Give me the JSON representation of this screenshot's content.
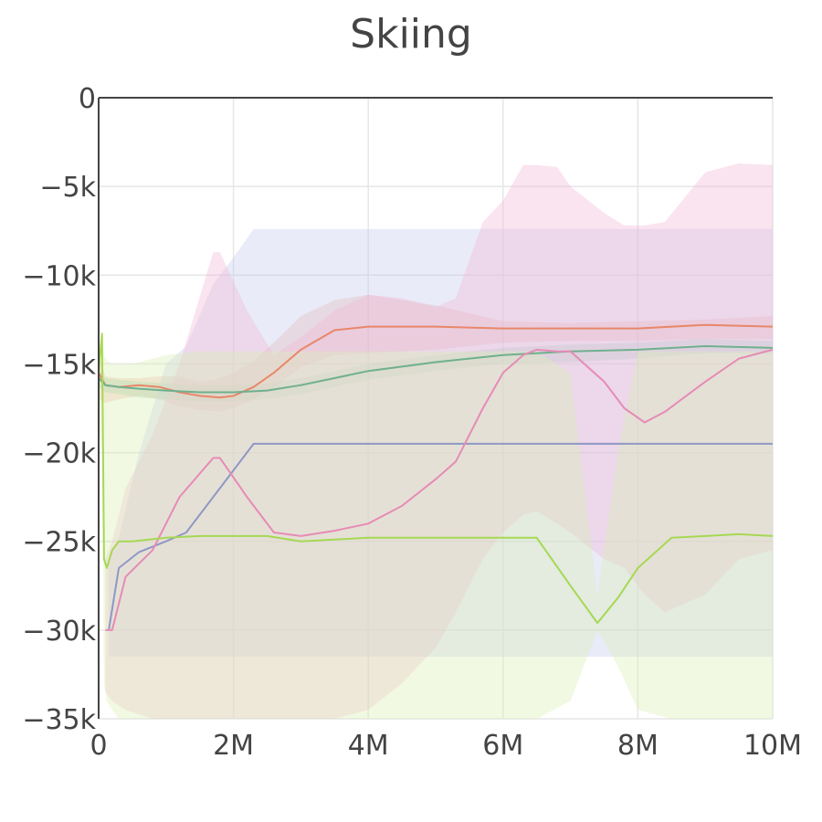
{
  "chart_data": {
    "type": "line",
    "title": "Skiing",
    "xlabel": "",
    "ylabel": "",
    "xlim": [
      0,
      10000000
    ],
    "ylim": [
      -35000,
      0
    ],
    "grid": true,
    "x_ticks": [
      {
        "value": 0,
        "label": "0"
      },
      {
        "value": 2000000,
        "label": "2M"
      },
      {
        "value": 4000000,
        "label": "4M"
      },
      {
        "value": 6000000,
        "label": "6M"
      },
      {
        "value": 8000000,
        "label": "8M"
      },
      {
        "value": 10000000,
        "label": "10M"
      }
    ],
    "y_ticks": [
      {
        "value": 0,
        "label": "0"
      },
      {
        "value": -5000,
        "label": "−5k"
      },
      {
        "value": -10000,
        "label": "−10k"
      },
      {
        "value": -15000,
        "label": "−15k"
      },
      {
        "value": -20000,
        "label": "−20k"
      },
      {
        "value": -25000,
        "label": "−25k"
      },
      {
        "value": -30000,
        "label": "−30k"
      },
      {
        "value": -35000,
        "label": "−35k"
      }
    ],
    "series": [
      {
        "color": "#e8876a",
        "band_color": "#f4b6a0",
        "x": [
          0,
          100000,
          300000,
          600000,
          900000,
          1200000,
          1500000,
          1800000,
          2000000,
          2300000,
          2600000,
          3000000,
          3500000,
          4000000,
          5000000,
          6000000,
          7000000,
          8000000,
          9000000,
          10000000
        ],
        "y": [
          -15500,
          -16200,
          -16300,
          -16200,
          -16300,
          -16600,
          -16800,
          -16900,
          -16800,
          -16300,
          -15500,
          -14200,
          -13100,
          -12900,
          -12900,
          -13000,
          -13000,
          -13000,
          -12800,
          -12900
        ],
        "lower": [
          -17000,
          -17200,
          -17000,
          -16800,
          -17000,
          -17400,
          -17600,
          -17700,
          -17500,
          -17000,
          -16300,
          -15200,
          -14500,
          -14400,
          -14200,
          -13800,
          -13700,
          -13700,
          -13600,
          -13600
        ],
        "upper": [
          -14500,
          -15700,
          -15800,
          -15800,
          -15700,
          -15700,
          -16000,
          -15800,
          -15500,
          -14800,
          -13800,
          -12300,
          -11400,
          -11100,
          -11700,
          -12600,
          -12700,
          -12600,
          -12500,
          -12300
        ]
      },
      {
        "color": "#6fb08e",
        "band_color": "#9fd2b4",
        "x": [
          0,
          100000,
          300000,
          600000,
          1000000,
          1500000,
          2000000,
          2500000,
          3000000,
          3500000,
          4000000,
          5000000,
          6000000,
          7000000,
          8000000,
          9000000,
          10000000
        ],
        "y": [
          -15800,
          -16200,
          -16300,
          -16400,
          -16500,
          -16600,
          -16600,
          -16500,
          -16200,
          -15800,
          -15400,
          -14900,
          -14500,
          -14300,
          -14200,
          -14000,
          -14100
        ],
        "lower": [
          -16300,
          -16600,
          -16700,
          -16900,
          -17000,
          -17100,
          -17100,
          -17000,
          -16700,
          -16300,
          -15900,
          -15400,
          -15000,
          -14900,
          -14700,
          -14400,
          -14400
        ],
        "upper": [
          -15300,
          -15800,
          -15900,
          -16000,
          -16100,
          -16200,
          -16200,
          -16100,
          -15800,
          -15400,
          -15000,
          -14500,
          -14100,
          -13900,
          -13800,
          -13600,
          -13700
        ]
      },
      {
        "color": "#8f98c4",
        "band_color": "#c4cbec",
        "x": [
          150000,
          300000,
          600000,
          1000000,
          1300000,
          1700000,
          2000000,
          2300000,
          3000000,
          5000000,
          7000000,
          9000000,
          10000000
        ],
        "y": [
          -30000,
          -26500,
          -25600,
          -25000,
          -24500,
          -22500,
          -21000,
          -19500,
          -19500,
          -19500,
          -19500,
          -19500,
          -19500
        ],
        "lower": [
          -31500,
          -31500,
          -31500,
          -31500,
          -31500,
          -31500,
          -31500,
          -31500,
          -31500,
          -31500,
          -31500,
          -31500,
          -31500
        ],
        "upper": [
          -26000,
          -24800,
          -20000,
          -15000,
          -14000,
          -10500,
          -9000,
          -7400,
          -7400,
          -7400,
          -7400,
          -7400,
          -7400
        ]
      },
      {
        "color": "#e68bb6",
        "band_color": "#f2b9d6",
        "x": [
          100000,
          200000,
          400000,
          800000,
          1200000,
          1700000,
          1800000,
          2200000,
          2600000,
          3000000,
          3500000,
          4000000,
          4500000,
          5000000,
          5300000,
          5700000,
          6000000,
          6300000,
          6500000,
          6800000,
          7000000,
          7500000,
          7800000,
          8100000,
          8400000,
          9000000,
          9500000,
          10000000
        ],
        "y": [
          -30000,
          -30000,
          -27000,
          -25500,
          -22500,
          -20300,
          -20300,
          -22500,
          -24500,
          -24700,
          -24400,
          -24000,
          -23000,
          -21500,
          -20500,
          -17500,
          -15500,
          -14500,
          -14200,
          -14300,
          -14300,
          -16000,
          -17500,
          -18300,
          -17700,
          -16000,
          -14700,
          -14200
        ],
        "lower": [
          -33500,
          -34000,
          -34500,
          -35000,
          -35000,
          -35000,
          -35000,
          -35000,
          -35000,
          -35000,
          -35000,
          -34500,
          -33000,
          -31000,
          -29000,
          -26000,
          -24500,
          -23500,
          -23300,
          -24000,
          -24500,
          -26000,
          -26500,
          -28000,
          -29000,
          -28000,
          -26000,
          -25500
        ],
        "upper": [
          -26000,
          -25000,
          -22000,
          -19000,
          -15000,
          -8700,
          -8700,
          -12000,
          -14500,
          -13500,
          -12000,
          -11100,
          -11300,
          -11800,
          -11300,
          -7000,
          -5800,
          -3800,
          -3800,
          -3900,
          -5000,
          -6500,
          -7200,
          -7200,
          -7000,
          -4200,
          -3700,
          -3800
        ]
      },
      {
        "color": "#a6d854",
        "band_color": "#d9efb6",
        "x": [
          0,
          50000,
          80000,
          120000,
          200000,
          300000,
          500000,
          1000000,
          1500000,
          2000000,
          2500000,
          3000000,
          4000000,
          5000000,
          6000000,
          6500000,
          7000000,
          7400000,
          7700000,
          8000000,
          8500000,
          9000000,
          9500000,
          10000000
        ],
        "y": [
          -15500,
          -13300,
          -26000,
          -26500,
          -25500,
          -25000,
          -25000,
          -24800,
          -24700,
          -24700,
          -24700,
          -25000,
          -24800,
          -24800,
          -24800,
          -24800,
          -27500,
          -29600,
          -28200,
          -26500,
          -24800,
          -24700,
          -24600,
          -24700
        ],
        "lower": [
          -18500,
          -20000,
          -33000,
          -34000,
          -34500,
          -35000,
          -35000,
          -35000,
          -35000,
          -35000,
          -35000,
          -35000,
          -35000,
          -35000,
          -35000,
          -35000,
          -34000,
          -30000,
          -32000,
          -34500,
          -35000,
          -35000,
          -35000,
          -35000
        ],
        "upper": [
          -14000,
          -13500,
          -14500,
          -14800,
          -15000,
          -15000,
          -15000,
          -14500,
          -14300,
          -14300,
          -14300,
          -14300,
          -14300,
          -14300,
          -14300,
          -14300,
          -15500,
          -28000,
          -20000,
          -14300,
          -14300,
          -14300,
          -14300,
          -14300
        ]
      }
    ]
  }
}
